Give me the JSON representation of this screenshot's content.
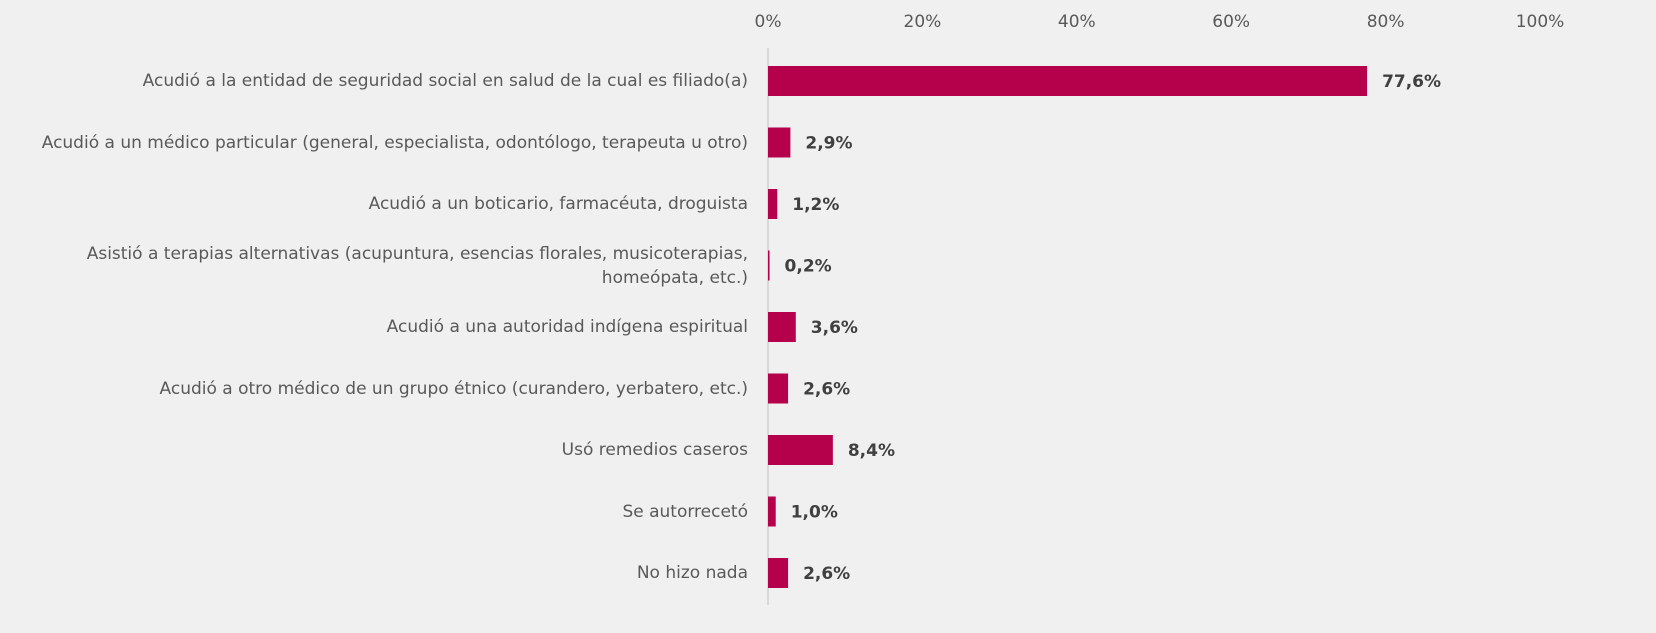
{
  "chart_data": {
    "type": "barh",
    "categories": [
      "Acudió a la entidad de seguridad social en salud de la cual es filiado(a)",
      "Acudió a un médico particular (general, especialista, odontólogo, terapeuta u otro)",
      "Acudió a un boticario, farmacéuta, droguista",
      "Asistió a terapias alternativas (acupuntura, esencias florales, musicoterapias, homeópata, etc.)",
      "Acudió a una autoridad indígena espiritual",
      "Acudió a otro médico de un grupo étnico (curandero, yerbatero, etc.)",
      "Usó remedios caseros",
      "Se autorrecetó",
      "No hizo nada"
    ],
    "values": [
      77.6,
      2.9,
      1.2,
      0.2,
      3.6,
      2.6,
      8.4,
      1.0,
      2.6
    ],
    "value_labels": [
      "77,6%",
      "2,9%",
      "1,2%",
      "0,2%",
      "3,6%",
      "2,6%",
      "8,4%",
      "1,0%",
      "2,6%"
    ],
    "color": "#b5004b",
    "xlim": [
      0,
      100
    ],
    "xticks": [
      {
        "value": 0,
        "label": "0%"
      },
      {
        "value": 20,
        "label": "20%"
      },
      {
        "value": 40,
        "label": "40%"
      },
      {
        "value": 60,
        "label": "60%"
      },
      {
        "value": 80,
        "label": "80%"
      },
      {
        "value": 100,
        "label": "100%"
      }
    ]
  }
}
